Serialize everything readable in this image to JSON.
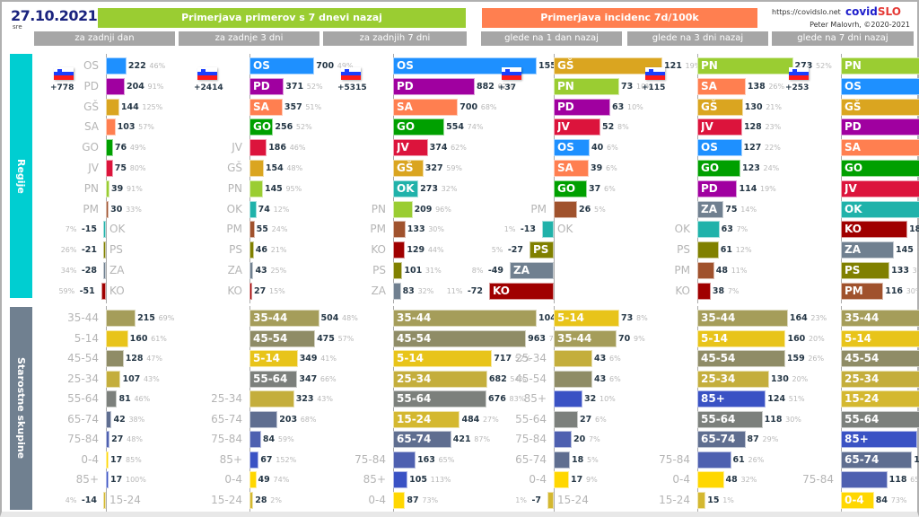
{
  "header": {
    "date": "27.10.2021",
    "weekday": "sre",
    "group1_title": "Primerjava primerov s 7 dnevi nazaj",
    "group2_title": "Primerjava incidenc 7d/100k",
    "site_url": "https://covidslo.net",
    "brand_a": "covid",
    "brand_b": "SLO",
    "author": "Peter Malovrh, ©2020-2021",
    "colors": {
      "group1": "#9acd32",
      "group2": "#ff7f50",
      "subheader": "#a6a6a6"
    }
  },
  "sections": {
    "regions_label": "Regije",
    "ages_label": "Starostne skupine"
  },
  "chart_data": [
    {
      "type": "bar",
      "orientation": "horizontal",
      "section": "regions",
      "title": "za zadnji dan",
      "group": "Primerjava primerov s 7 dnevi nazaj",
      "total": "+778",
      "categories": [
        "OS",
        "PD",
        "GŠ",
        "SA",
        "GO",
        "JV",
        "PN",
        "PM",
        "OK",
        "PS",
        "ZA",
        "KO"
      ],
      "values": [
        222,
        204,
        144,
        103,
        76,
        75,
        39,
        30,
        -15,
        -21,
        -28,
        -51
      ],
      "pct": [
        "46%",
        "91%",
        "125%",
        "57%",
        "49%",
        "80%",
        "91%",
        "33%",
        "7%",
        "26%",
        "34%",
        "59%"
      ],
      "scale_max": 1550
    },
    {
      "type": "bar",
      "orientation": "horizontal",
      "section": "regions",
      "title": "za zadnje 3 dni",
      "group": "Primerjava primerov s 7 dnevi nazaj",
      "total": "+2414",
      "categories": [
        "OS",
        "PD",
        "SA",
        "GO",
        "JV",
        "GŠ",
        "PN",
        "OK",
        "PM",
        "PS",
        "ZA",
        "KO"
      ],
      "values": [
        700,
        371,
        357,
        256,
        186,
        154,
        145,
        74,
        55,
        46,
        43,
        27
      ],
      "pct": [
        "49%",
        "52%",
        "51%",
        "52%",
        "46%",
        "48%",
        "95%",
        "12%",
        "24%",
        "21%",
        "25%",
        "15%"
      ],
      "scale_max": 1550
    },
    {
      "type": "bar",
      "orientation": "horizontal",
      "section": "regions",
      "title": "za zadnjih 7 dni",
      "group": "Primerjava primerov s 7 dnevi nazaj",
      "total": "+5315",
      "categories": [
        "OS",
        "PD",
        "SA",
        "GO",
        "JV",
        "GŠ",
        "OK",
        "PN",
        "PM",
        "KO",
        "PS",
        "ZA"
      ],
      "values": [
        1550,
        882,
        700,
        554,
        374,
        327,
        273,
        209,
        133,
        129,
        101,
        83
      ],
      "pct": [
        "64%",
        "62%",
        "68%",
        "74%",
        "62%",
        "59%",
        "32%",
        "96%",
        "30%",
        "44%",
        "31%",
        "32%"
      ],
      "scale_max": 1550
    },
    {
      "type": "bar",
      "orientation": "horizontal",
      "section": "regions",
      "title": "glede na 1 dan nazaj",
      "group": "Primerjava incidenc 7d/100k",
      "total": "+37",
      "categories": [
        "GŠ",
        "PN",
        "PD",
        "JV",
        "OS",
        "SA",
        "GO",
        "PM",
        "OK",
        "PS",
        "ZA",
        "KO"
      ],
      "values": [
        121,
        73,
        63,
        52,
        40,
        39,
        37,
        26,
        -13,
        -27,
        -49,
        -72
      ],
      "pct": [
        "19%",
        "10%",
        "10%",
        "8%",
        "6%",
        "6%",
        "6%",
        "5%",
        "1%",
        "5%",
        "8%",
        "11%"
      ],
      "scale_max": 160
    },
    {
      "type": "bar",
      "orientation": "horizontal",
      "section": "regions",
      "title": "glede na 3 dni nazaj",
      "group": "Primerjava incidenc 7d/100k",
      "total": "+115",
      "categories": [
        "PN",
        "SA",
        "GŠ",
        "JV",
        "OS",
        "GO",
        "PD",
        "ZA",
        "OK",
        "PS",
        "PM",
        "KO"
      ],
      "values": [
        273,
        138,
        130,
        128,
        127,
        123,
        114,
        75,
        63,
        61,
        48,
        38
      ],
      "pct": [
        "52%",
        "26%",
        "21%",
        "23%",
        "22%",
        "24%",
        "19%",
        "14%",
        "7%",
        "12%",
        "11%",
        "7%"
      ],
      "scale_max": 410
    },
    {
      "type": "bar",
      "orientation": "horizontal",
      "section": "regions",
      "title": "glede na 7 dni nazaj",
      "group": "Primerjava incidenc 7d/100k",
      "total": "+253",
      "categories": [
        "PN",
        "OS",
        "GŠ",
        "PD",
        "SA",
        "GO",
        "JV",
        "OK",
        "KO",
        "ZA",
        "PS",
        "PM"
      ],
      "values": [
        393,
        280,
        276,
        271,
        271,
        267,
        257,
        233,
        182,
        145,
        133,
        116
      ],
      "pct": [
        "96%",
        "65%",
        "59%",
        "63%",
        "68%",
        "74%",
        "62%",
        "32%",
        "44%",
        "32%",
        "31%",
        "30%"
      ],
      "scale_max": 430
    },
    {
      "type": "bar",
      "orientation": "horizontal",
      "section": "ages",
      "title": "za zadnji dan",
      "categories": [
        "35-44",
        "5-14",
        "45-54",
        "25-34",
        "55-64",
        "65-74",
        "75-84",
        "0-4",
        "85+",
        "15-24"
      ],
      "values": [
        215,
        160,
        128,
        107,
        81,
        42,
        27,
        17,
        17,
        -14
      ],
      "pct": [
        "69%",
        "61%",
        "47%",
        "43%",
        "46%",
        "38%",
        "48%",
        "85%",
        "100%",
        "4%"
      ],
      "scale_max": 1040
    },
    {
      "type": "bar",
      "orientation": "horizontal",
      "section": "ages",
      "title": "za zadnje 3 dni",
      "categories": [
        "35-44",
        "45-54",
        "5-14",
        "55-64",
        "25-34",
        "65-74",
        "75-84",
        "85+",
        "0-4",
        "15-24"
      ],
      "values": [
        504,
        475,
        349,
        347,
        323,
        203,
        84,
        67,
        49,
        28
      ],
      "pct": [
        "48%",
        "57%",
        "41%",
        "66%",
        "43%",
        "68%",
        "59%",
        "152%",
        "74%",
        "2%"
      ],
      "scale_max": 1040
    },
    {
      "type": "bar",
      "orientation": "horizontal",
      "section": "ages",
      "title": "za zadnjih 7 dni",
      "categories": [
        "35-44",
        "45-54",
        "5-14",
        "25-34",
        "55-64",
        "15-24",
        "65-74",
        "75-84",
        "85+",
        "0-4"
      ],
      "values": [
        1040,
        963,
        717,
        682,
        676,
        484,
        421,
        163,
        105,
        87
      ],
      "pct": [
        "62%",
        "73%",
        "52%",
        "54%",
        "83%",
        "27%",
        "87%",
        "65%",
        "113%",
        "73%"
      ],
      "scale_max": 1040
    },
    {
      "type": "bar",
      "orientation": "horizontal",
      "section": "ages",
      "title": "glede na 1 dan nazaj",
      "categories": [
        "5-14",
        "35-44",
        "25-34",
        "45-54",
        "85+",
        "55-64",
        "75-84",
        "65-74",
        "0-4",
        "15-24"
      ],
      "values": [
        73,
        70,
        43,
        43,
        32,
        27,
        20,
        18,
        17,
        -7
      ],
      "pct": [
        "8%",
        "9%",
        "6%",
        "6%",
        "10%",
        "6%",
        "7%",
        "5%",
        "9%",
        "1%"
      ],
      "scale_max": 160
    },
    {
      "type": "bar",
      "orientation": "horizontal",
      "section": "ages",
      "title": "glede na 3 dni nazaj",
      "categories": [
        "35-44",
        "5-14",
        "45-54",
        "25-34",
        "85+",
        "55-64",
        "65-74",
        "75-84",
        "0-4",
        "15-24"
      ],
      "values": [
        164,
        160,
        159,
        130,
        124,
        118,
        87,
        61,
        48,
        15
      ],
      "pct": [
        "23%",
        "20%",
        "26%",
        "20%",
        "51%",
        "30%",
        "29%",
        "26%",
        "32%",
        "1%"
      ],
      "scale_max": 260
    },
    {
      "type": "bar",
      "orientation": "horizontal",
      "section": "ages",
      "title": "glede na 7 dni nazaj",
      "categories": [
        "35-44",
        "5-14",
        "45-54",
        "25-34",
        "15-24",
        "55-64",
        "85+",
        "65-74",
        "75-84",
        "0-4"
      ],
      "values": [
        339,
        330,
        323,
        274,
        250,
        230,
        194,
        181,
        118,
        84
      ],
      "pct": [
        "62%",
        "52%",
        "73%",
        "53%",
        "27%",
        "83%",
        "113%",
        "87%",
        "65%",
        "73%"
      ],
      "scale_max": 400
    }
  ],
  "category_colors": {
    "OS": "#1e90ff",
    "PD": "#a000a0",
    "GŠ": "#daa520",
    "SA": "#ff7f50",
    "GO": "#00a000",
    "JV": "#dc143c",
    "PN": "#9acd32",
    "PM": "#a0522d",
    "OK": "#20b2aa",
    "PS": "#808000",
    "ZA": "#708090",
    "KO": "#a00000",
    "35-44": "#a59d5a",
    "5-14": "#e8c41a",
    "45-54": "#8f8c66",
    "25-34": "#c4ae3c",
    "55-64": "#7c807c",
    "65-74": "#5f6e90",
    "75-84": "#4e60b0",
    "0-4": "#ffd700",
    "85+": "#3a52c4",
    "15-24": "#d4b830"
  }
}
